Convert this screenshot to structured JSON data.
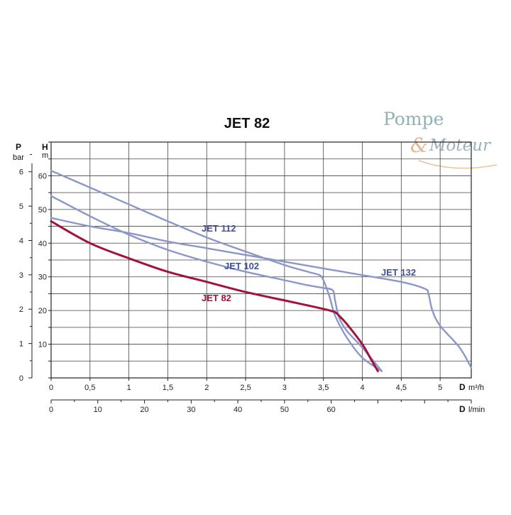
{
  "logo": {
    "line1": "Pompe",
    "ampersand": "&",
    "line2": "Moteur"
  },
  "colors": {
    "highlight": "#a2123a",
    "others": "#8c97c9",
    "others_label": "#3f4f9a",
    "grid": "#444444",
    "axis": "#222222"
  },
  "chart_data": {
    "type": "line",
    "title": "JET 82",
    "xlabel": {
      "letter": "D",
      "unit": "m³/h"
    },
    "x2label": {
      "letter": "D",
      "unit": "l/min"
    },
    "y_left_outer": {
      "letter": "P",
      "unit": "bar"
    },
    "y_left_inner": {
      "letter": "H",
      "unit": "m"
    },
    "xlim": [
      0,
      5.4
    ],
    "ylim": [
      0,
      70
    ],
    "x_ticks": [
      "0",
      "0,5",
      "1",
      "1,5",
      "2",
      "2,5",
      "3",
      "3,5",
      "4",
      "4,5",
      "5"
    ],
    "x2_ticks": [
      "0",
      "10",
      "20",
      "30",
      "40",
      "50",
      "60"
    ],
    "x2_tick_values_lmin": [
      0,
      10,
      20,
      30,
      40,
      50,
      60
    ],
    "h_ticks": [
      "10",
      "20",
      "30",
      "40",
      "50",
      "60"
    ],
    "h_tick_values": [
      10,
      20,
      30,
      40,
      50,
      60
    ],
    "p_ticks": [
      "0",
      "1",
      "2",
      "3",
      "4",
      "5",
      "6"
    ],
    "p_tick_values": [
      0,
      1,
      2,
      3,
      4,
      5,
      6
    ],
    "grid": true,
    "series": [
      {
        "name": "JET 112",
        "highlight": false,
        "x": [
          0,
          0.5,
          1,
          1.5,
          2,
          2.5,
          3,
          3.3,
          3.45,
          3.5,
          3.58,
          3.65,
          3.8,
          4.0,
          4.25
        ],
        "y": [
          61.5,
          56.5,
          51.5,
          46.5,
          41.7,
          37.5,
          33.5,
          31.5,
          30.5,
          29,
          24,
          18.5,
          12,
          6,
          2
        ]
      },
      {
        "name": "JET 102",
        "highlight": false,
        "x": [
          0,
          0.5,
          1,
          1.5,
          2,
          2.5,
          3,
          3.3,
          3.5,
          3.62,
          3.65,
          3.7,
          3.8,
          4.0,
          4.25
        ],
        "y": [
          54,
          48,
          42.5,
          38,
          34.5,
          31.5,
          29,
          27.5,
          26.7,
          26,
          23,
          18,
          14,
          9,
          2
        ]
      },
      {
        "name": "JET 132",
        "highlight": false,
        "x": [
          0,
          0.5,
          1,
          1.5,
          2,
          2.5,
          3,
          3.5,
          4,
          4.5,
          4.8,
          4.85,
          4.9,
          5,
          5.25,
          5.4
        ],
        "y": [
          47.5,
          45,
          43,
          40.5,
          38.5,
          36.5,
          34.5,
          32.5,
          30.5,
          28.5,
          26.5,
          25,
          20,
          15.5,
          9,
          3
        ]
      },
      {
        "name": "JET 82",
        "highlight": true,
        "x": [
          0,
          0.5,
          1,
          1.5,
          2,
          2.5,
          3,
          3.3,
          3.55,
          3.65,
          3.7,
          3.8,
          4.0,
          4.1,
          4.2
        ],
        "y": [
          46.5,
          40,
          35.5,
          31.5,
          28.5,
          25.5,
          23,
          21.5,
          20.2,
          19.5,
          18.5,
          16,
          10,
          6,
          2
        ]
      }
    ],
    "series_labels": [
      "JET 112",
      "JET 102",
      "JET 132",
      "JET 82"
    ]
  }
}
